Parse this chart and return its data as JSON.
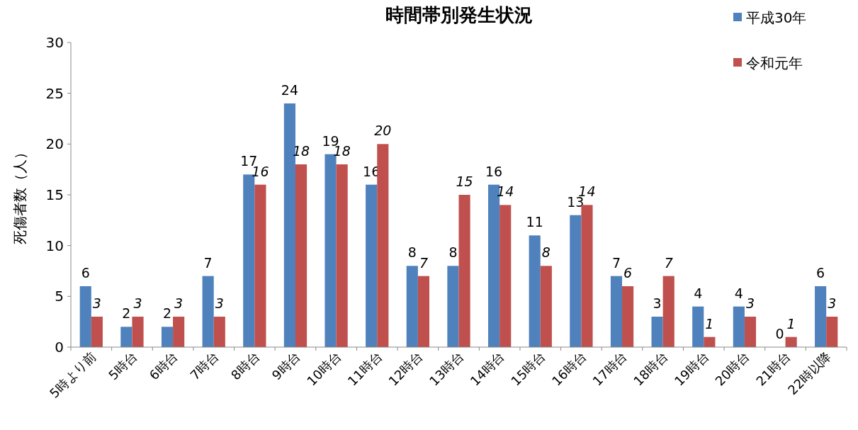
{
  "chart_data": {
    "type": "bar",
    "title": "時間帯別発生状況",
    "ylabel": "死傷者数（人）",
    "categories": [
      "5時より前",
      "5時台",
      "6時台",
      "7時台",
      "8時台",
      "9時台",
      "10時台",
      "11時台",
      "12時台",
      "13時台",
      "14時台",
      "15時台",
      "16時台",
      "17時台",
      "18時台",
      "19時台",
      "20時台",
      "21時台",
      "22時以降"
    ],
    "series": [
      {
        "name": "平成30年",
        "color": "#4f81bd",
        "values": [
          6,
          2,
          2,
          7,
          17,
          24,
          19,
          16,
          8,
          8,
          16,
          11,
          13,
          7,
          3,
          4,
          4,
          0,
          6
        ]
      },
      {
        "name": "令和元年",
        "color": "#c0504d",
        "values": [
          3,
          3,
          3,
          3,
          16,
          18,
          18,
          20,
          7,
          15,
          14,
          8,
          14,
          6,
          7,
          1,
          3,
          1,
          3
        ]
      }
    ],
    "ylim": [
      0,
      30
    ],
    "yticks": [
      0,
      5,
      10,
      15,
      20,
      25,
      30
    ],
    "data_labels": true,
    "legend": "top right"
  }
}
